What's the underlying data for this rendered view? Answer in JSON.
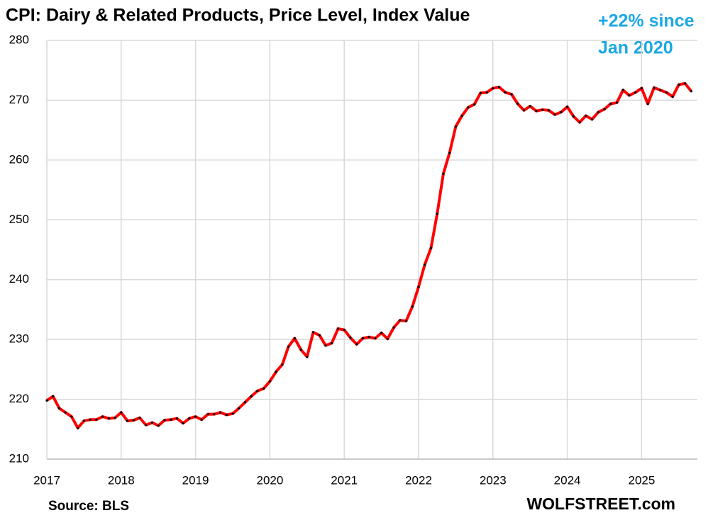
{
  "chart_data": {
    "type": "line",
    "title": "CPI: Dairy & Related Products, Price Level, Index Value",
    "annotation": [
      "+22% since",
      "Jan 2020"
    ],
    "source": "Source: BLS",
    "credit": "WOLFSTREET.com",
    "color": "#ff0000",
    "marker_color": "#000000",
    "grid": true,
    "xlim": [
      2017,
      2025.75
    ],
    "xticks": [
      2017,
      2018,
      2019,
      2020,
      2021,
      2022,
      2023,
      2024,
      2025
    ],
    "ylim": [
      210,
      280
    ],
    "yticks": [
      210,
      220,
      230,
      240,
      250,
      260,
      270,
      280
    ],
    "x": [
      2017,
      2017.083,
      2017.167,
      2017.25,
      2017.333,
      2017.417,
      2017.5,
      2017.583,
      2017.667,
      2017.75,
      2017.833,
      2017.917,
      2018,
      2018.083,
      2018.167,
      2018.25,
      2018.333,
      2018.417,
      2018.5,
      2018.583,
      2018.667,
      2018.75,
      2018.833,
      2018.917,
      2019,
      2019.083,
      2019.167,
      2019.25,
      2019.333,
      2019.417,
      2019.5,
      2019.583,
      2019.667,
      2019.75,
      2019.833,
      2019.917,
      2020,
      2020.083,
      2020.167,
      2020.25,
      2020.333,
      2020.417,
      2020.5,
      2020.583,
      2020.667,
      2020.75,
      2020.833,
      2020.917,
      2021,
      2021.083,
      2021.167,
      2021.25,
      2021.333,
      2021.417,
      2021.5,
      2021.583,
      2021.667,
      2021.75,
      2021.833,
      2021.917,
      2022,
      2022.083,
      2022.167,
      2022.25,
      2022.333,
      2022.417,
      2022.5,
      2022.583,
      2022.667,
      2022.75,
      2022.833,
      2022.917,
      2023,
      2023.083,
      2023.167,
      2023.25,
      2023.333,
      2023.417,
      2023.5,
      2023.583,
      2023.667,
      2023.75,
      2023.833,
      2023.917,
      2024,
      2024.083,
      2024.167,
      2024.25,
      2024.333,
      2024.417,
      2024.5,
      2024.583,
      2024.667,
      2024.75,
      2024.833,
      2024.917,
      2025,
      2025.083,
      2025.167,
      2025.25,
      2025.333,
      2025.417,
      2025.5,
      2025.583,
      2025.667
    ],
    "values": [
      219.8,
      220.5,
      218.5,
      217.8,
      217.1,
      215.2,
      216.4,
      216.6,
      216.6,
      217.1,
      216.8,
      216.9,
      217.8,
      216.4,
      216.5,
      216.9,
      215.7,
      216.1,
      215.6,
      216.5,
      216.6,
      216.8,
      216.0,
      216.8,
      217.1,
      216.6,
      217.5,
      217.5,
      217.8,
      217.4,
      217.6,
      218.5,
      219.5,
      220.5,
      221.4,
      221.8,
      223.0,
      224.6,
      225.8,
      228.8,
      230.2,
      228.3,
      227.1,
      231.2,
      230.7,
      229.0,
      229.4,
      231.8,
      231.6,
      230.3,
      229.2,
      230.2,
      230.4,
      230.2,
      231.1,
      230.1,
      232.0,
      233.2,
      233.1,
      235.5,
      238.8,
      242.5,
      245.3,
      251.0,
      257.7,
      261.2,
      265.6,
      267.4,
      268.8,
      269.3,
      271.2,
      271.3,
      272.0,
      272.2,
      271.3,
      271.0,
      269.4,
      268.3,
      269.0,
      268.2,
      268.4,
      268.3,
      267.6,
      268.0,
      268.9,
      267.3,
      266.3,
      267.4,
      266.8,
      268.0,
      268.5,
      269.4,
      269.6,
      271.7,
      270.8,
      271.3,
      272.0,
      269.4,
      272.1,
      271.7,
      271.3,
      270.6,
      272.6,
      272.8,
      271.5
    ]
  }
}
